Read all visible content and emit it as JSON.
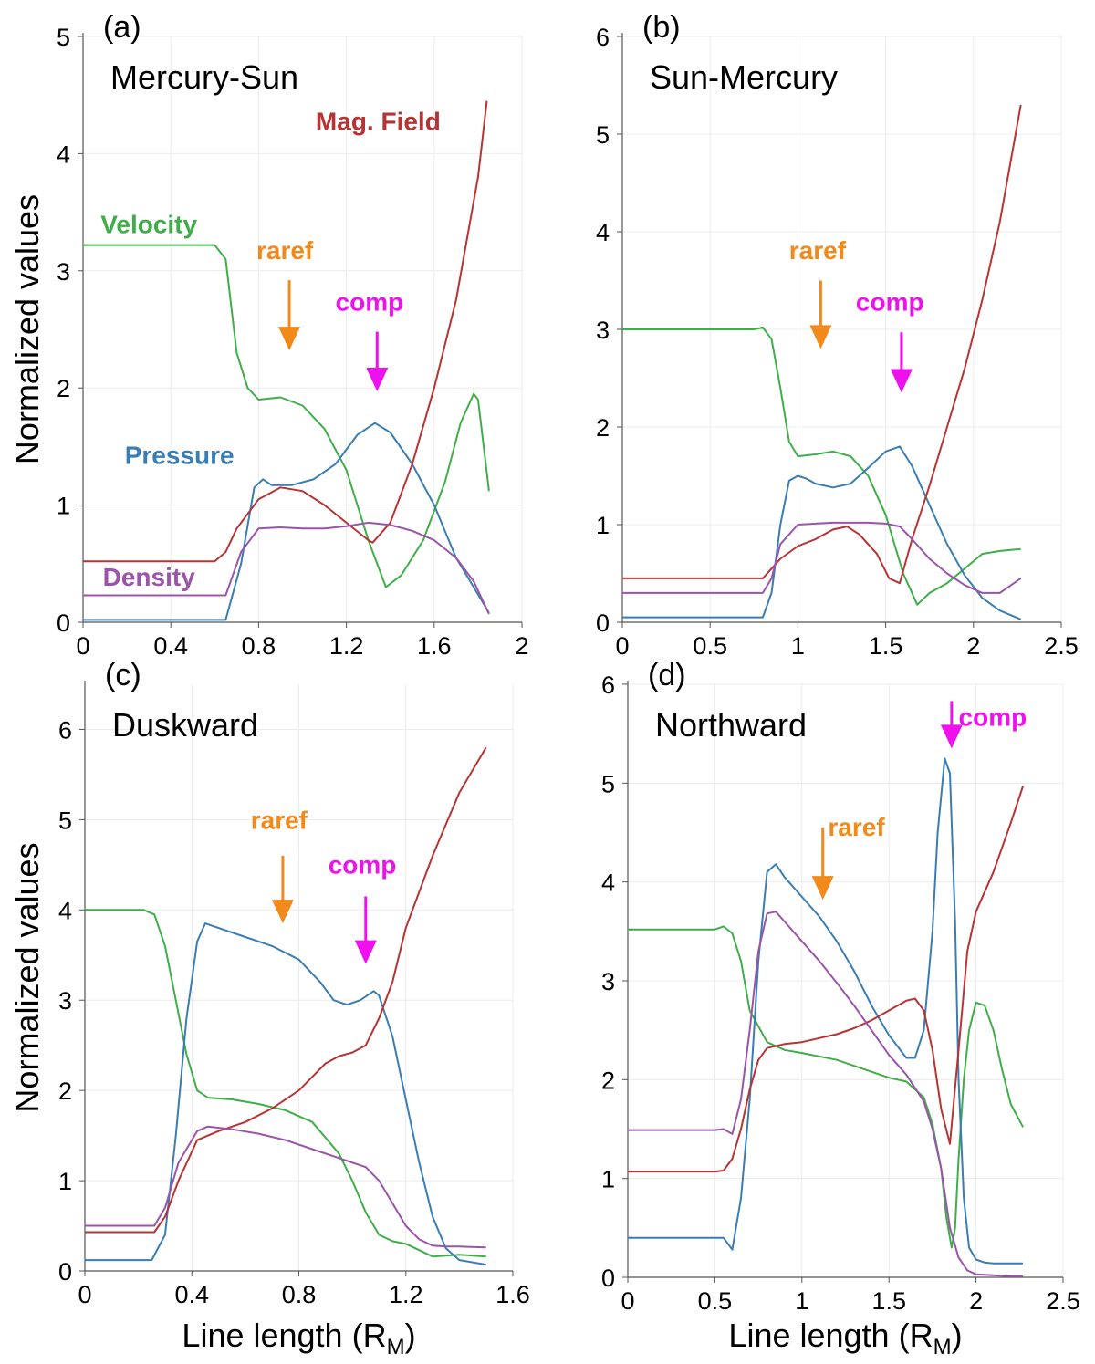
{
  "figure": {
    "ylabel": "Normalized values",
    "xlabel_main": "Line length (R",
    "xlabel_sub": "M",
    "xlabel_end": ")"
  },
  "colors": {
    "Velocity": "#3fae49",
    "Pressure": "#3a7db3",
    "Mag. Field": "#b83333",
    "Density": "#9a54a9",
    "raref": "#f28a1b",
    "comp": "#ee11ee"
  },
  "chart_data": [
    {
      "id": "a",
      "type": "line",
      "tag": "(a)",
      "title": "Mercury-Sun",
      "xlabel": "",
      "ylabel": "Normalized values",
      "xlim": [
        0,
        2
      ],
      "ylim": [
        0,
        5
      ],
      "xticks": [
        0,
        0.4,
        0.8,
        1.2,
        1.6,
        2
      ],
      "xtick_labels": [
        "0",
        "0.4",
        "0.8",
        "1.2",
        "1.6",
        "2"
      ],
      "yticks": [
        0,
        1,
        2,
        3,
        4,
        5
      ],
      "ytick_labels": [
        "0",
        "1",
        "2",
        "3",
        "4",
        "5"
      ],
      "series": [
        {
          "name": "Velocity",
          "x": [
            0,
            0.6,
            0.65,
            0.7,
            0.75,
            0.8,
            0.9,
            1.0,
            1.1,
            1.2,
            1.3,
            1.38,
            1.45,
            1.55,
            1.65,
            1.72,
            1.78,
            1.8,
            1.85
          ],
          "y": [
            3.22,
            3.22,
            3.1,
            2.3,
            2.0,
            1.9,
            1.92,
            1.85,
            1.65,
            1.3,
            0.7,
            0.3,
            0.4,
            0.7,
            1.2,
            1.7,
            1.95,
            1.9,
            1.12
          ]
        },
        {
          "name": "Pressure",
          "x": [
            0,
            0.65,
            0.72,
            0.78,
            0.82,
            0.86,
            0.95,
            1.05,
            1.15,
            1.25,
            1.33,
            1.4,
            1.5,
            1.6,
            1.7,
            1.78,
            1.85
          ],
          "y": [
            0.02,
            0.02,
            0.5,
            1.15,
            1.22,
            1.17,
            1.17,
            1.22,
            1.35,
            1.6,
            1.7,
            1.62,
            1.35,
            1.0,
            0.55,
            0.3,
            0.08
          ]
        },
        {
          "name": "Mag. Field",
          "x": [
            0,
            0.6,
            0.65,
            0.7,
            0.8,
            0.9,
            1.0,
            1.1,
            1.2,
            1.3,
            1.32,
            1.4,
            1.5,
            1.6,
            1.7,
            1.8,
            1.84
          ],
          "y": [
            0.52,
            0.52,
            0.6,
            0.8,
            1.05,
            1.15,
            1.12,
            1.0,
            0.85,
            0.7,
            0.68,
            0.85,
            1.35,
            2.0,
            2.75,
            3.8,
            4.45
          ]
        },
        {
          "name": "Density",
          "x": [
            0,
            0.65,
            0.72,
            0.8,
            0.9,
            1.0,
            1.1,
            1.2,
            1.3,
            1.4,
            1.5,
            1.6,
            1.7,
            1.78,
            1.85
          ],
          "y": [
            0.23,
            0.23,
            0.6,
            0.8,
            0.81,
            0.8,
            0.8,
            0.82,
            0.85,
            0.83,
            0.78,
            0.7,
            0.55,
            0.35,
            0.07
          ]
        }
      ],
      "annotations": [
        {
          "text": "Velocity",
          "color_key": "Velocity",
          "x": 0.08,
          "y": 3.32
        },
        {
          "text": "Pressure",
          "color_key": "Pressure",
          "x": 0.19,
          "y": 1.35
        },
        {
          "text": "Mag. Field",
          "color_key": "Mag. Field",
          "x": 1.06,
          "y": 4.2
        },
        {
          "text": "Density",
          "color_key": "Density",
          "x": 0.09,
          "y": 0.31
        },
        {
          "text": "raref",
          "color_key": "raref",
          "x": 0.79,
          "y": 3.1,
          "arrow_x": 0.94,
          "arrow_from": 2.92,
          "arrow_to": 2.32
        },
        {
          "text": "comp",
          "color_key": "comp",
          "x": 1.15,
          "y": 2.66,
          "arrow_x": 1.34,
          "arrow_from": 2.48,
          "arrow_to": 1.97
        }
      ]
    },
    {
      "id": "b",
      "type": "line",
      "tag": "(b)",
      "title": "Sun-Mercury",
      "xlabel": "",
      "ylabel": "",
      "xlim": [
        0,
        2.5
      ],
      "ylim": [
        0,
        6
      ],
      "xticks": [
        0,
        0.5,
        1,
        1.5,
        2,
        2.5
      ],
      "xtick_labels": [
        "0",
        "0.5",
        "1",
        "1.5",
        "2",
        "2.5"
      ],
      "yticks": [
        0,
        1,
        2,
        3,
        4,
        5,
        6
      ],
      "ytick_labels": [
        "0",
        "1",
        "2",
        "3",
        "4",
        "5",
        "6"
      ],
      "series": [
        {
          "name": "Velocity",
          "x": [
            0,
            0.75,
            0.8,
            0.85,
            0.9,
            0.95,
            1.0,
            1.1,
            1.2,
            1.3,
            1.4,
            1.5,
            1.6,
            1.68,
            1.75,
            1.85,
            1.95,
            2.05,
            2.15,
            2.27
          ],
          "y": [
            3.0,
            3.0,
            3.02,
            2.9,
            2.4,
            1.85,
            1.7,
            1.72,
            1.75,
            1.7,
            1.5,
            1.1,
            0.5,
            0.18,
            0.3,
            0.4,
            0.55,
            0.7,
            0.73,
            0.75
          ]
        },
        {
          "name": "Pressure",
          "x": [
            0,
            0.8,
            0.85,
            0.9,
            0.95,
            1.0,
            1.05,
            1.1,
            1.2,
            1.3,
            1.4,
            1.5,
            1.58,
            1.65,
            1.75,
            1.85,
            1.95,
            2.05,
            2.15,
            2.27
          ],
          "y": [
            0.05,
            0.05,
            0.3,
            1.0,
            1.45,
            1.5,
            1.47,
            1.42,
            1.38,
            1.42,
            1.58,
            1.75,
            1.8,
            1.6,
            1.2,
            0.8,
            0.48,
            0.25,
            0.12,
            0.03
          ]
        },
        {
          "name": "Mag. Field",
          "x": [
            0,
            0.8,
            0.9,
            1.0,
            1.1,
            1.2,
            1.28,
            1.35,
            1.45,
            1.52,
            1.58,
            1.65,
            1.75,
            1.85,
            1.95,
            2.05,
            2.15,
            2.27
          ],
          "y": [
            0.45,
            0.45,
            0.65,
            0.78,
            0.85,
            0.95,
            0.98,
            0.9,
            0.7,
            0.45,
            0.4,
            0.85,
            1.4,
            2.0,
            2.6,
            3.3,
            4.1,
            5.3
          ]
        },
        {
          "name": "Density",
          "x": [
            0,
            0.8,
            0.85,
            0.9,
            1.0,
            1.1,
            1.2,
            1.3,
            1.4,
            1.5,
            1.58,
            1.65,
            1.75,
            1.85,
            1.95,
            2.05,
            2.15,
            2.27
          ],
          "y": [
            0.3,
            0.3,
            0.45,
            0.8,
            1.0,
            1.01,
            1.02,
            1.02,
            1.02,
            1.01,
            0.98,
            0.85,
            0.65,
            0.5,
            0.38,
            0.3,
            0.3,
            0.45
          ]
        }
      ],
      "annotations": [
        {
          "text": "raref",
          "color_key": "raref",
          "x": 0.95,
          "y": 3.72,
          "arrow_x": 1.13,
          "arrow_from": 3.5,
          "arrow_to": 2.8
        },
        {
          "text": "comp",
          "color_key": "comp",
          "x": 1.33,
          "y": 3.19,
          "arrow_x": 1.59,
          "arrow_from": 2.97,
          "arrow_to": 2.35
        }
      ]
    },
    {
      "id": "c",
      "type": "line",
      "tag": "(c)",
      "title": "Duskward",
      "xlabel": "Line length (RM)",
      "ylabel": "Normalized values",
      "xlim": [
        0,
        1.6
      ],
      "ylim": [
        0,
        6.5
      ],
      "xticks": [
        0,
        0.4,
        0.8,
        1.2,
        1.6
      ],
      "xtick_labels": [
        "0",
        "0.4",
        "0.8",
        "1.2",
        "1.6"
      ],
      "yticks": [
        0,
        1,
        2,
        3,
        4,
        5,
        6
      ],
      "ytick_labels": [
        "0",
        "1",
        "2",
        "3",
        "4",
        "5",
        "6"
      ],
      "series": [
        {
          "name": "Velocity",
          "x": [
            0,
            0.22,
            0.26,
            0.3,
            0.34,
            0.38,
            0.42,
            0.46,
            0.55,
            0.65,
            0.75,
            0.85,
            0.95,
            1.0,
            1.05,
            1.1,
            1.15,
            1.2,
            1.3,
            1.4,
            1.5
          ],
          "y": [
            4.0,
            4.0,
            3.95,
            3.6,
            3.0,
            2.4,
            2.0,
            1.92,
            1.9,
            1.85,
            1.78,
            1.65,
            1.3,
            1.0,
            0.65,
            0.4,
            0.33,
            0.3,
            0.16,
            0.18,
            0.16
          ]
        },
        {
          "name": "Pressure",
          "x": [
            0,
            0.25,
            0.3,
            0.34,
            0.38,
            0.42,
            0.45,
            0.5,
            0.6,
            0.7,
            0.8,
            0.88,
            0.93,
            0.98,
            1.03,
            1.08,
            1.1,
            1.15,
            1.2,
            1.25,
            1.3,
            1.35,
            1.4,
            1.5
          ],
          "y": [
            0.12,
            0.12,
            0.4,
            1.5,
            2.8,
            3.65,
            3.85,
            3.8,
            3.7,
            3.6,
            3.45,
            3.2,
            3.0,
            2.95,
            3.0,
            3.1,
            3.05,
            2.6,
            1.9,
            1.2,
            0.6,
            0.25,
            0.12,
            0.07
          ]
        },
        {
          "name": "Mag. Field",
          "x": [
            0,
            0.26,
            0.3,
            0.35,
            0.42,
            0.5,
            0.6,
            0.7,
            0.8,
            0.9,
            0.95,
            1.0,
            1.05,
            1.1,
            1.15,
            1.2,
            1.3,
            1.4,
            1.5
          ],
          "y": [
            0.43,
            0.43,
            0.6,
            1.0,
            1.45,
            1.55,
            1.65,
            1.8,
            2.0,
            2.3,
            2.38,
            2.42,
            2.5,
            2.8,
            3.2,
            3.8,
            4.6,
            5.3,
            5.8
          ]
        },
        {
          "name": "Density",
          "x": [
            0,
            0.26,
            0.3,
            0.35,
            0.42,
            0.46,
            0.55,
            0.65,
            0.75,
            0.85,
            0.95,
            1.05,
            1.1,
            1.15,
            1.2,
            1.25,
            1.3,
            1.35,
            1.4,
            1.5
          ],
          "y": [
            0.5,
            0.5,
            0.7,
            1.2,
            1.55,
            1.6,
            1.57,
            1.52,
            1.45,
            1.35,
            1.25,
            1.15,
            1.0,
            0.75,
            0.5,
            0.35,
            0.28,
            0.27,
            0.27,
            0.26
          ]
        }
      ],
      "annotations": [
        {
          "text": "raref",
          "color_key": "raref",
          "x": 0.62,
          "y": 4.9,
          "arrow_x": 0.74,
          "arrow_from": 4.6,
          "arrow_to": 3.85
        },
        {
          "text": "comp",
          "color_key": "comp",
          "x": 0.91,
          "y": 4.4,
          "arrow_x": 1.05,
          "arrow_from": 4.15,
          "arrow_to": 3.4
        }
      ]
    },
    {
      "id": "d",
      "type": "line",
      "tag": "(d)",
      "title": "Northward",
      "xlabel": "Line length (RM)",
      "ylabel": "",
      "xlim": [
        0,
        2.5
      ],
      "ylim": [
        0,
        6
      ],
      "xticks": [
        0,
        0.5,
        1,
        1.5,
        2,
        2.5
      ],
      "xtick_labels": [
        "0",
        "0.5",
        "1",
        "1.5",
        "2",
        "2.5"
      ],
      "yticks": [
        0,
        1,
        2,
        3,
        4,
        5,
        6
      ],
      "ytick_labels": [
        "0",
        "1",
        "2",
        "3",
        "4",
        "5",
        "6"
      ],
      "series": [
        {
          "name": "Velocity",
          "x": [
            0,
            0.5,
            0.55,
            0.6,
            0.65,
            0.7,
            0.8,
            0.9,
            1.0,
            1.2,
            1.4,
            1.5,
            1.6,
            1.7,
            1.75,
            1.8,
            1.83,
            1.86,
            1.88,
            1.9,
            1.93,
            1.96,
            2.0,
            2.05,
            2.1,
            2.15,
            2.2,
            2.27
          ],
          "y": [
            3.52,
            3.52,
            3.55,
            3.48,
            3.2,
            2.7,
            2.38,
            2.3,
            2.27,
            2.2,
            2.08,
            2.02,
            1.98,
            1.82,
            1.55,
            1.1,
            0.6,
            0.3,
            0.5,
            1.2,
            2.0,
            2.5,
            2.78,
            2.75,
            2.5,
            2.1,
            1.75,
            1.52
          ]
        },
        {
          "name": "Pressure",
          "x": [
            0,
            0.45,
            0.55,
            0.6,
            0.65,
            0.7,
            0.75,
            0.8,
            0.85,
            0.9,
            1.0,
            1.1,
            1.2,
            1.3,
            1.4,
            1.5,
            1.6,
            1.65,
            1.7,
            1.75,
            1.78,
            1.82,
            1.85,
            1.88,
            1.9,
            1.93,
            1.96,
            2.0,
            2.05,
            2.1,
            2.27
          ],
          "y": [
            0.4,
            0.4,
            0.4,
            0.28,
            0.8,
            1.8,
            3.2,
            4.1,
            4.18,
            4.05,
            3.85,
            3.65,
            3.4,
            3.1,
            2.75,
            2.45,
            2.22,
            2.22,
            2.5,
            3.5,
            4.5,
            5.25,
            5.1,
            3.6,
            2.0,
            0.8,
            0.3,
            0.18,
            0.15,
            0.14,
            0.14
          ]
        },
        {
          "name": "Mag. Field",
          "x": [
            0,
            0.5,
            0.55,
            0.6,
            0.65,
            0.7,
            0.75,
            0.8,
            0.9,
            1.0,
            1.1,
            1.2,
            1.3,
            1.4,
            1.5,
            1.6,
            1.65,
            1.7,
            1.75,
            1.8,
            1.85,
            1.9,
            1.95,
            2.0,
            2.1,
            2.2,
            2.27
          ],
          "y": [
            1.07,
            1.07,
            1.08,
            1.2,
            1.5,
            1.9,
            2.2,
            2.32,
            2.36,
            2.38,
            2.42,
            2.46,
            2.52,
            2.6,
            2.7,
            2.8,
            2.82,
            2.7,
            2.3,
            1.7,
            1.35,
            2.3,
            3.3,
            3.7,
            4.1,
            4.6,
            4.97
          ]
        },
        {
          "name": "Density",
          "x": [
            0,
            0.5,
            0.55,
            0.6,
            0.65,
            0.7,
            0.75,
            0.8,
            0.85,
            0.9,
            1.0,
            1.1,
            1.2,
            1.3,
            1.4,
            1.5,
            1.6,
            1.7,
            1.75,
            1.8,
            1.85,
            1.9,
            1.95,
            2.0,
            2.1,
            2.2,
            2.27
          ],
          "y": [
            1.49,
            1.49,
            1.5,
            1.45,
            1.8,
            2.5,
            3.3,
            3.68,
            3.7,
            3.6,
            3.4,
            3.2,
            2.98,
            2.75,
            2.5,
            2.25,
            2.05,
            1.78,
            1.5,
            1.1,
            0.5,
            0.2,
            0.07,
            0.03,
            0.02,
            0.01,
            0.01
          ]
        }
      ],
      "annotations": [
        {
          "text": "raref",
          "color_key": "raref",
          "x": 1.15,
          "y": 4.47,
          "arrow_x": 1.12,
          "arrow_from": 4.55,
          "arrow_to": 3.82,
          "arrow_side": "left"
        },
        {
          "text": "comp",
          "color_key": "comp",
          "x": 1.9,
          "y": 5.58,
          "arrow_x": 1.86,
          "arrow_from": 5.83,
          "arrow_to": 5.35,
          "arrow_side": "left"
        }
      ]
    }
  ]
}
